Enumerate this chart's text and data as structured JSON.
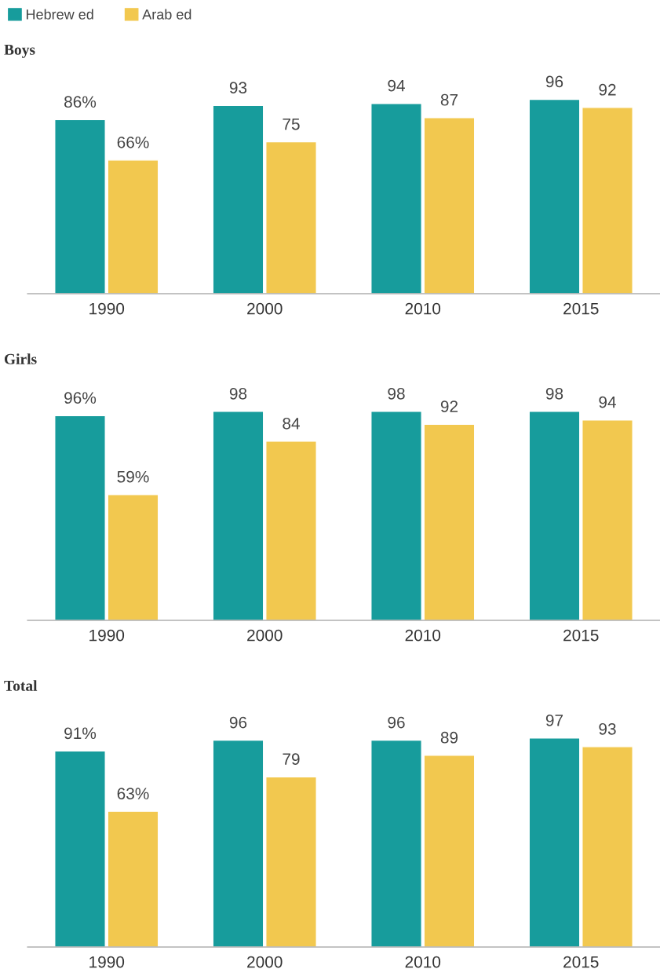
{
  "chart_data": [
    {
      "type": "bar",
      "title": "Boys",
      "categories": [
        "1990",
        "2000",
        "2010",
        "2015"
      ],
      "tick_labels": "x",
      "grid": false,
      "legend": "top left",
      "series": [
        {
          "name": "Hebrew ed",
          "color": "#179c9c",
          "values": [
            86,
            93,
            94,
            96
          ],
          "value_labels": [
            "86%",
            "93",
            "94",
            "96"
          ]
        },
        {
          "name": "Arab ed",
          "color": "#f2c84f",
          "values": [
            66,
            75,
            87,
            92
          ],
          "value_labels": [
            "66%",
            "75",
            "87",
            "92"
          ]
        }
      ]
    },
    {
      "type": "bar",
      "title": "Girls",
      "categories": [
        "1990",
        "2000",
        "2010",
        "2015"
      ],
      "tick_labels": "x",
      "grid": false,
      "legend": false,
      "series": [
        {
          "color": "#179c9c",
          "values": [
            96,
            98,
            98,
            98
          ],
          "value_labels": [
            "96%",
            "98",
            "98",
            "98"
          ]
        },
        {
          "color": "#f2c84f",
          "values": [
            59,
            84,
            92,
            94
          ],
          "value_labels": [
            "59%",
            "84",
            "92",
            "94"
          ]
        }
      ]
    },
    {
      "type": "bar",
      "title": "Total",
      "categories": [
        "1990",
        "2000",
        "2010",
        "2015"
      ],
      "tick_labels": "x",
      "grid": false,
      "legend": false,
      "series": [
        {
          "color": "#179c9c",
          "values": [
            91,
            96,
            96,
            97
          ],
          "value_labels": [
            "91%",
            "96",
            "96",
            "97"
          ]
        },
        {
          "color": "#f2c84f",
          "values": [
            63,
            79,
            89,
            93
          ],
          "value_labels": [
            "63%",
            "79",
            "89",
            "93"
          ]
        }
      ]
    }
  ]
}
